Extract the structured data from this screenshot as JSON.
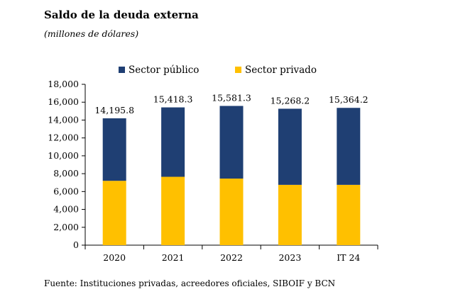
{
  "header": {
    "title": "Saldo de la deuda externa",
    "subtitle": "(millones de dólares)"
  },
  "footer": {
    "source": "Fuente: Instituciones privadas, acreedores oficiales, SIBOIF y BCN"
  },
  "colors": {
    "sector_publico": "#1F3F73",
    "sector_privado": "#FFC000"
  },
  "chart_data": {
    "type": "bar",
    "stacked": true,
    "categories": [
      "2020",
      "2021",
      "2022",
      "2023",
      "IT 24"
    ],
    "series": [
      {
        "name": "Sector privado",
        "values": [
          7200,
          7650,
          7450,
          6750,
          6750
        ]
      },
      {
        "name": "Sector público",
        "values": [
          6995.8,
          7768.3,
          8131.3,
          8518.2,
          8614.2
        ]
      }
    ],
    "totals": [
      14195.8,
      15418.3,
      15581.3,
      15268.2,
      15364.2
    ],
    "total_labels": [
      "14,195.8",
      "15,418.3",
      "15,581.3",
      "15,268.2",
      "15,364.2"
    ],
    "yticks": [
      0,
      2000,
      4000,
      6000,
      8000,
      10000,
      12000,
      14000,
      16000,
      18000
    ],
    "ytick_labels": [
      "0",
      "2,000",
      "4,000",
      "6,000",
      "8,000",
      "10,000",
      "12,000",
      "14,000",
      "16,000",
      "18,000"
    ],
    "ylim": [
      0,
      18000
    ],
    "legend": [
      "Sector público",
      "Sector privado"
    ],
    "legend_position": "top",
    "grid": false
  }
}
